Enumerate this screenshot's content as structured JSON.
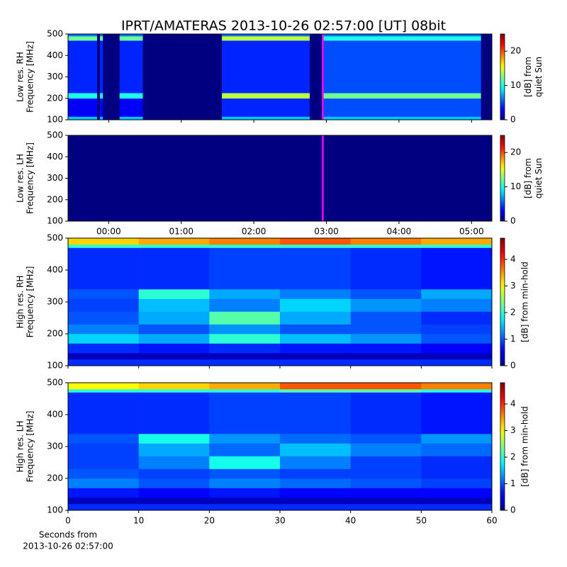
{
  "chart_data": [
    {
      "type": "heatmap",
      "title": "IPRT/AMATERAS 2013-10-26 02:57:00 [UT]   08bit",
      "ylabel": [
        "Low res. RH",
        "Frequency [MHz]"
      ],
      "xlim": [
        -0.56,
        5.28
      ],
      "xticks": [
        0,
        1,
        2,
        3,
        4,
        5
      ],
      "xticklabels": false,
      "ylim": [
        100,
        500
      ],
      "yticks": [
        100,
        200,
        300,
        400,
        500
      ],
      "x_edges": [
        -0.56,
        -0.16,
        -0.12,
        -0.08,
        0.15,
        0.47,
        1.56,
        2.77,
        2.95,
        5.13,
        5.28
      ],
      "y_edges": [
        100,
        115,
        200,
        225,
        470,
        490,
        500
      ],
      "z": [
        [
          8,
          0,
          8,
          0,
          8,
          0,
          8,
          0,
          8,
          0
        ],
        [
          3,
          0,
          3,
          0,
          3,
          0,
          4,
          0,
          5,
          0
        ],
        [
          10,
          0,
          10,
          0,
          10,
          0,
          14,
          0,
          12,
          0
        ],
        [
          4,
          0,
          4,
          0,
          4,
          0,
          4,
          0,
          5,
          0
        ],
        [
          12,
          0,
          12,
          0,
          12,
          0,
          14,
          0,
          10,
          0
        ],
        [
          6,
          0,
          6,
          0,
          6,
          0,
          6,
          0,
          6,
          0
        ]
      ],
      "colormap": "jet",
      "clim": [
        0,
        25
      ],
      "cticks": [
        0,
        10,
        20
      ],
      "clabel": [
        "[dB] from",
        "quiet Sun"
      ],
      "marker_x": 2.95,
      "marker_color": "#ff00ff"
    },
    {
      "type": "heatmap",
      "ylabel": [
        "Low res. LH",
        "Frequency [MHz]"
      ],
      "xlim": [
        -0.56,
        5.28
      ],
      "xticks": [
        {
          "value": 0,
          "label": "00:00"
        },
        {
          "value": 1,
          "label": "01:00"
        },
        {
          "value": 2,
          "label": "02:00"
        },
        {
          "value": 3,
          "label": "03:00"
        },
        {
          "value": 4,
          "label": "04:00"
        },
        {
          "value": 5,
          "label": "05:00"
        }
      ],
      "ylim": [
        100,
        500
      ],
      "yticks": [
        100,
        200,
        300,
        400,
        500
      ],
      "x_edges": [
        -0.56,
        5.28
      ],
      "y_edges": [
        100,
        500
      ],
      "z": [
        [
          0
        ]
      ],
      "colormap": "jet",
      "clim": [
        0,
        25
      ],
      "cticks": [
        0,
        10,
        20
      ],
      "clabel": [
        "[dB] from",
        "quiet Sun"
      ],
      "marker_x": 2.95,
      "marker_color": "#ff00ff"
    },
    {
      "type": "heatmap",
      "ylabel": [
        "High res. RH",
        "Frequency [MHz]"
      ],
      "xlim": [
        0,
        60
      ],
      "xticks": [
        0,
        10,
        20,
        30,
        40,
        50,
        60
      ],
      "xticklabels": false,
      "ylim": [
        100,
        500
      ],
      "yticks": [
        100,
        200,
        300,
        400,
        500
      ],
      "x_edges": [
        0,
        10,
        20,
        30,
        40,
        50,
        60
      ],
      "y_edges": [
        100,
        120,
        140,
        170,
        200,
        230,
        270,
        310,
        340,
        470,
        480,
        500
      ],
      "z": [
        [
          0.8,
          0.8,
          0.8,
          0.8,
          0.8,
          0.8
        ],
        [
          0.3,
          0.3,
          0.3,
          0.3,
          0.3,
          0.3
        ],
        [
          0.8,
          0.7,
          0.8,
          0.7,
          0.7,
          0.6
        ],
        [
          1.6,
          1.4,
          2.0,
          1.5,
          1.3,
          1.0
        ],
        [
          1.2,
          1.0,
          1.3,
          1.0,
          1.0,
          0.9
        ],
        [
          1.0,
          1.4,
          2.2,
          1.4,
          1.0,
          0.8
        ],
        [
          0.9,
          1.5,
          1.2,
          1.6,
          1.3,
          1.2
        ],
        [
          1.0,
          2.0,
          1.4,
          1.2,
          1.0,
          1.4
        ],
        [
          0.8,
          0.8,
          0.9,
          0.9,
          0.8,
          0.7
        ],
        [
          2.0,
          2.0,
          2.0,
          2.0,
          2.0,
          2.0
        ],
        [
          3.2,
          3.4,
          3.6,
          3.8,
          3.6,
          3.4
        ]
      ],
      "colormap": "jet",
      "clim": [
        0,
        4.8
      ],
      "cticks": [
        0,
        1,
        2,
        3,
        4
      ],
      "clabel": [
        "[dB] from min-hold"
      ]
    },
    {
      "type": "heatmap",
      "ylabel": [
        "High res. LH",
        "Frequency [MHz]"
      ],
      "xlabel": [
        "Seconds from",
        "2013-10-26 02:57:00"
      ],
      "xlim": [
        0,
        60
      ],
      "xticks": [
        0,
        10,
        20,
        30,
        40,
        50,
        60
      ],
      "ylim": [
        100,
        500
      ],
      "yticks": [
        100,
        200,
        300,
        400,
        500
      ],
      "x_edges": [
        0,
        10,
        20,
        30,
        40,
        50,
        60
      ],
      "y_edges": [
        100,
        120,
        140,
        170,
        200,
        230,
        270,
        310,
        340,
        470,
        480,
        500
      ],
      "z": [
        [
          0.8,
          0.8,
          0.8,
          0.8,
          0.8,
          0.8
        ],
        [
          0.3,
          0.3,
          0.3,
          0.3,
          0.3,
          0.3
        ],
        [
          0.7,
          0.6,
          0.7,
          0.6,
          0.6,
          0.6
        ],
        [
          1.2,
          1.0,
          1.2,
          1.1,
          1.0,
          0.9
        ],
        [
          1.0,
          0.9,
          1.0,
          0.9,
          0.9,
          0.8
        ],
        [
          0.9,
          1.2,
          1.9,
          1.2,
          0.9,
          0.8
        ],
        [
          0.9,
          1.4,
          1.1,
          1.5,
          1.2,
          1.1
        ],
        [
          1.0,
          1.9,
          1.3,
          1.1,
          1.0,
          1.3
        ],
        [
          0.8,
          0.8,
          0.9,
          0.9,
          0.8,
          0.7
        ],
        [
          2.0,
          2.0,
          2.0,
          2.2,
          2.2,
          2.0
        ],
        [
          3.0,
          3.2,
          3.4,
          3.8,
          3.8,
          3.6
        ]
      ],
      "colormap": "jet",
      "clim": [
        0,
        4.8
      ],
      "cticks": [
        0,
        1,
        2,
        3,
        4
      ],
      "clabel": [
        "[dB] from min-hold"
      ]
    }
  ]
}
